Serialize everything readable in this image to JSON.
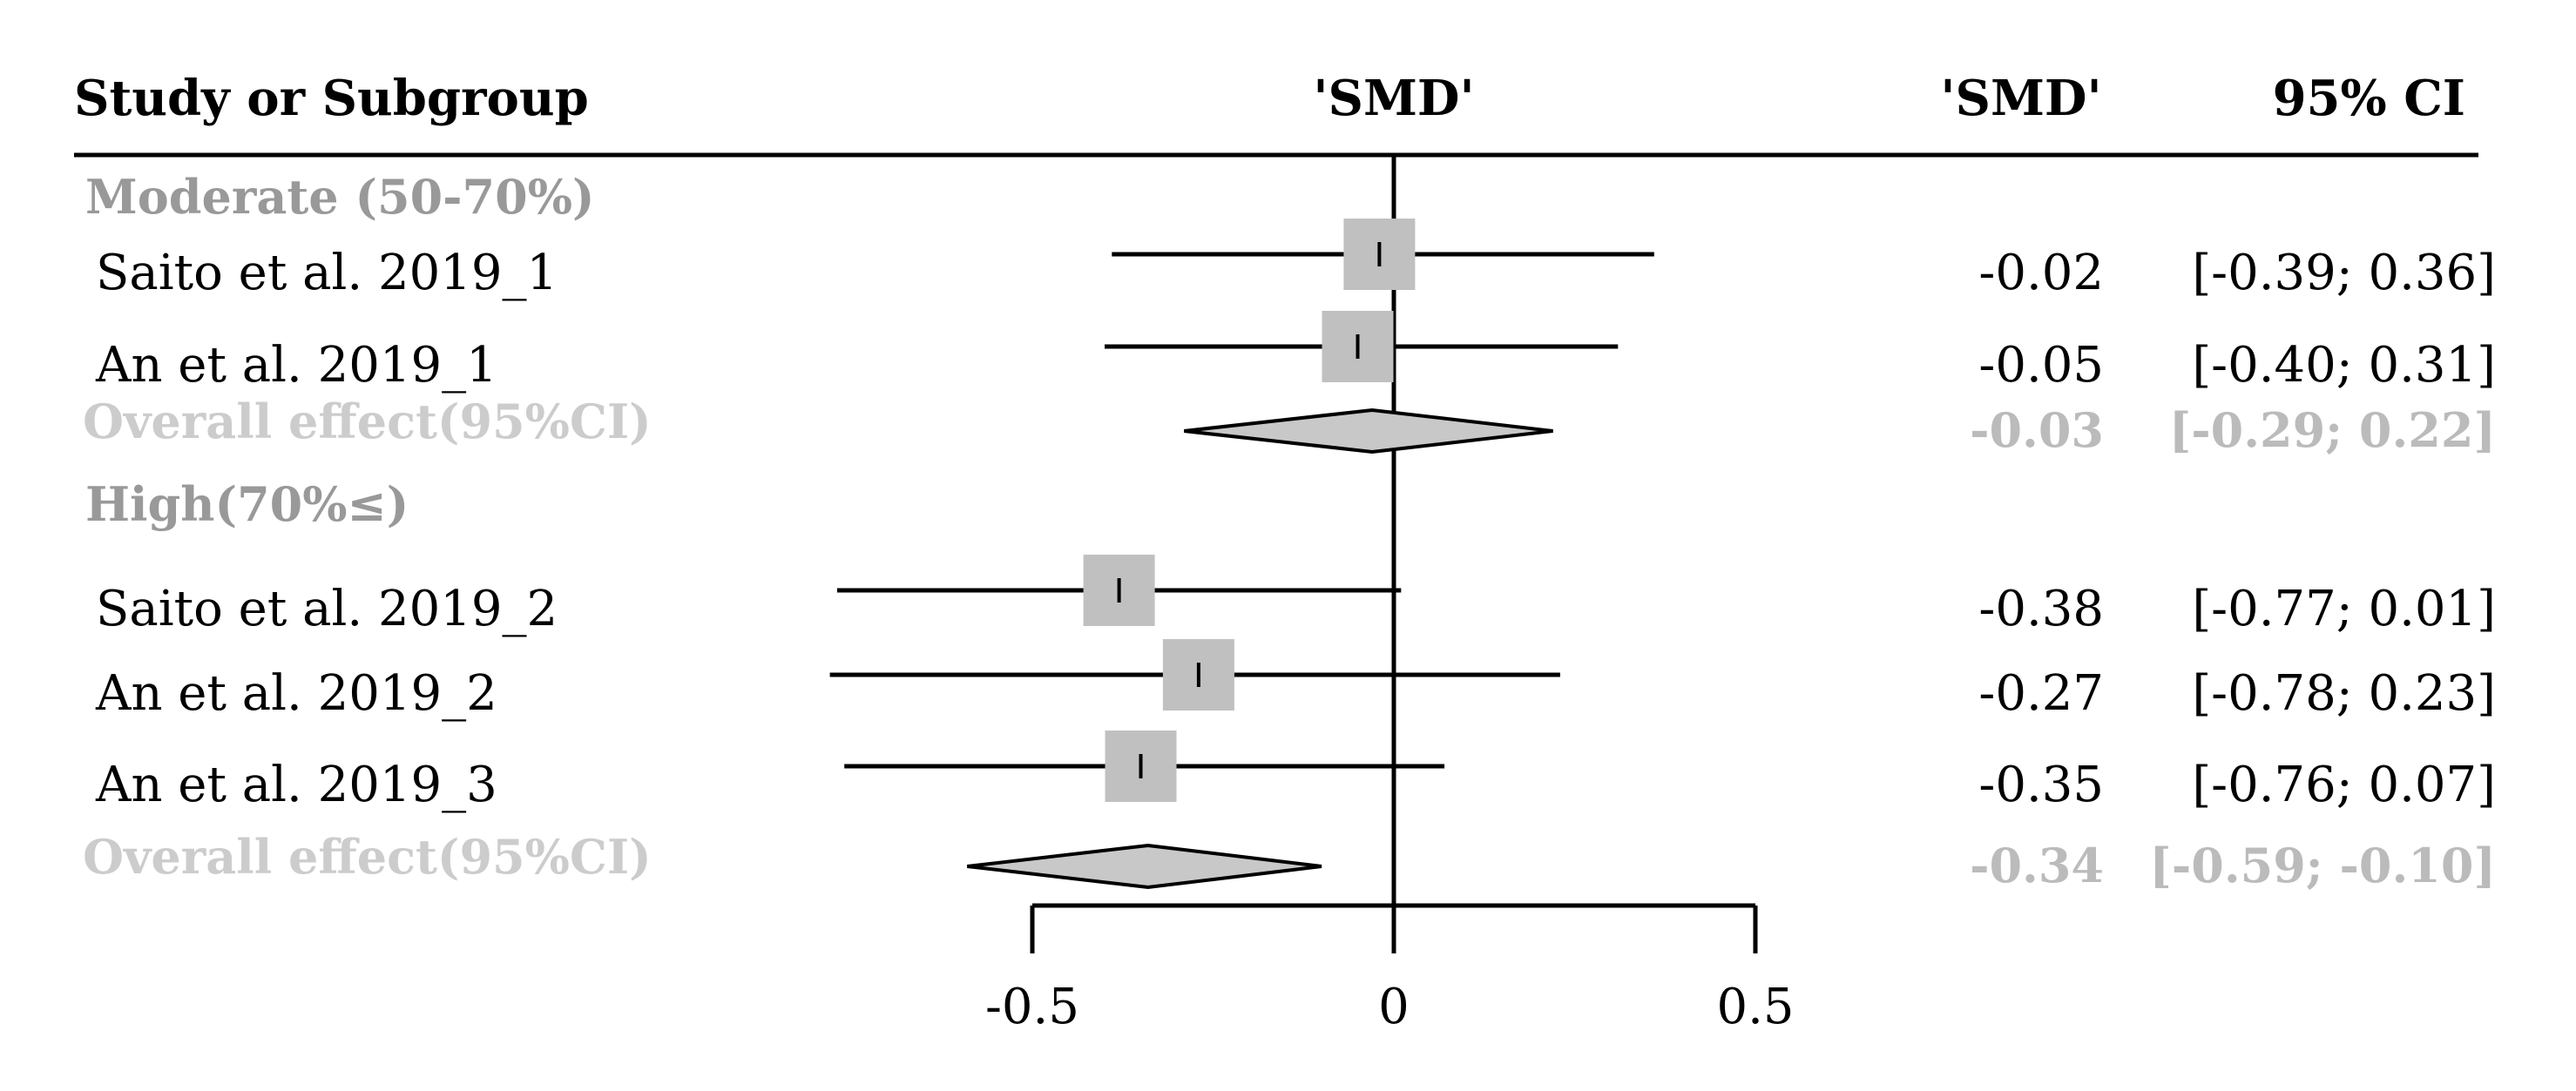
{
  "header": {
    "study_col": "Study or Subgroup",
    "plot_col": "'SMD'",
    "smd_col": "'SMD'",
    "ci_col": "95% CI"
  },
  "chart_data": {
    "type": "forest",
    "xlim": [
      -0.5,
      0.5
    ],
    "x_ticks": [
      -0.5,
      0,
      0.5
    ],
    "x_tick_labels": [
      "-0.5",
      "0",
      "0.5"
    ],
    "rows": [
      {
        "kind": "group",
        "label": "Moderate (50-70%)"
      },
      {
        "kind": "study",
        "label": "Saito et al. 2019_1",
        "smd": -0.02,
        "lo": -0.39,
        "hi": 0.36,
        "smd_text": "-0.02",
        "ci_text": "[-0.39;  0.36]"
      },
      {
        "kind": "study",
        "label": "An et al. 2019_1",
        "smd": -0.05,
        "lo": -0.4,
        "hi": 0.31,
        "smd_text": "-0.05",
        "ci_text": "[-0.40;  0.31]"
      },
      {
        "kind": "overall",
        "label": "Overall effect(95%CI)",
        "smd": -0.03,
        "lo": -0.29,
        "hi": 0.22,
        "smd_text": "-0.03",
        "ci_text": "[-0.29;  0.22]"
      },
      {
        "kind": "group",
        "label": "High(70%≤)"
      },
      {
        "kind": "study",
        "label": "Saito et al. 2019_2",
        "smd": -0.38,
        "lo": -0.77,
        "hi": 0.01,
        "smd_text": "-0.38",
        "ci_text": "[-0.77;  0.01]"
      },
      {
        "kind": "study",
        "label": "An et al. 2019_2",
        "smd": -0.27,
        "lo": -0.78,
        "hi": 0.23,
        "smd_text": "-0.27",
        "ci_text": "[-0.78;  0.23]"
      },
      {
        "kind": "study",
        "label": "An et al. 2019_3",
        "smd": -0.35,
        "lo": -0.76,
        "hi": 0.07,
        "smd_text": "-0.35",
        "ci_text": "[-0.76;  0.07]"
      },
      {
        "kind": "overall",
        "label": "Overall effect(95%CI)",
        "smd": -0.34,
        "lo": -0.59,
        "hi": -0.1,
        "smd_text": "-0.34",
        "ci_text": "[-0.59; -0.10]"
      }
    ],
    "colors": {
      "box": "#c0c0c0",
      "diamond": "#c8c8c8",
      "group_label": "#999999",
      "overall_label": "#cccccc"
    }
  }
}
